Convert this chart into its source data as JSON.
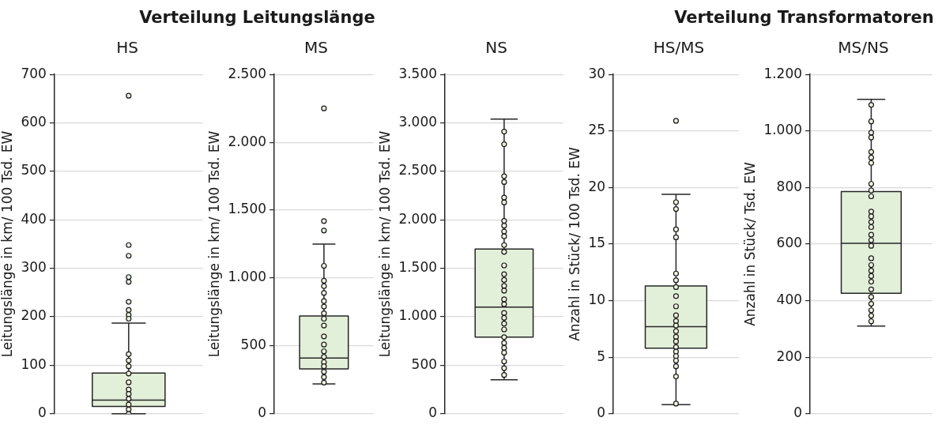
{
  "chart_data": [
    {
      "type": "box",
      "subtitle": "HS",
      "ylabel": "Leitungslänge in km/ 100 Tsd. EW",
      "categories": [
        null
      ],
      "ylim": [
        0,
        700
      ],
      "yticks": [
        0,
        100,
        200,
        300,
        400,
        500,
        600,
        700
      ],
      "grid": "y",
      "tick_labels": "y",
      "marker": "circle",
      "series": [
        {
          "color": "#e2efd9",
          "boxes": [
            {
              "low": 0,
              "q1": 15,
              "median": 28,
              "q3": 84,
              "high": 187,
              "outliers": [
                656,
                348,
                326,
                282,
                272,
                231,
                214,
                204,
                196
              ]
            }
          ]
        },
        {
          "type": "scatter",
          "color": "#eef3dd",
          "x": [
            null,
            null,
            null,
            null,
            null,
            null,
            null,
            null,
            null,
            null,
            null
          ],
          "values": [
            123,
            110,
            98,
            83,
            65,
            50,
            41,
            31,
            19,
            9,
            0
          ]
        }
      ]
    },
    {
      "type": "box",
      "title": "Verteilung Leitungslänge",
      "subtitle": "MS",
      "ylabel": "Leitungslänge in km/ 100 Tsd. EW",
      "categories": [
        null
      ],
      "ylim": [
        0,
        2500
      ],
      "yticks": [
        0,
        500,
        {
          "value": 1000,
          "label": "1.000"
        },
        {
          "value": 1500,
          "label": "1.500"
        },
        {
          "value": 2000,
          "label": "2.000"
        },
        {
          "value": 2500,
          "label": "2.500"
        }
      ],
      "grid": "y",
      "tick_labels": "y",
      "marker": "circle",
      "series": [
        {
          "color": "#e2efd9",
          "boxes": [
            {
              "low": 220,
              "q1": 330,
              "median": 410,
              "q3": 720,
              "high": 1250,
              "outliers": [
                2250,
                1420,
                1350
              ]
            }
          ]
        },
        {
          "type": "scatter",
          "color": "#eef3dd",
          "x": [
            null,
            null,
            null,
            null,
            null,
            null,
            null,
            null,
            null,
            null,
            null,
            null,
            null,
            null,
            null,
            null,
            null,
            null
          ],
          "values": [
            1090,
            980,
            940,
            890,
            830,
            790,
            740,
            700,
            650,
            570,
            510,
            460,
            420,
            380,
            350,
            310,
            270,
            230
          ]
        }
      ]
    },
    {
      "type": "box",
      "subtitle": "NS",
      "ylabel": "Leitungslänge in km/ 100 Tsd. EW",
      "categories": [
        null
      ],
      "ylim": [
        0,
        3500
      ],
      "yticks": [
        0,
        500,
        {
          "value": 1000,
          "label": "1.000"
        },
        {
          "value": 1500,
          "label": "1.500"
        },
        {
          "value": 2000,
          "label": "2.000"
        },
        {
          "value": 2500,
          "label": "2.500"
        },
        {
          "value": 3000,
          "label": "3.000"
        },
        {
          "value": 3500,
          "label": "3.500"
        }
      ],
      "grid": "y",
      "tick_labels": "y",
      "marker": "circle",
      "series": [
        {
          "color": "#e2efd9",
          "boxes": [
            {
              "low": 350,
              "q1": 790,
              "median": 1100,
              "q3": 1700,
              "high": 3040
            }
          ]
        },
        {
          "type": "scatter",
          "color": "#eef3dd",
          "x": [
            null,
            null,
            null,
            null,
            null,
            null,
            null,
            null,
            null,
            null,
            null,
            null,
            null,
            null,
            null,
            null,
            null,
            null,
            null,
            null,
            null,
            null,
            null,
            null,
            null,
            null,
            null,
            null,
            null,
            null
          ],
          "values": [
            2910,
            2780,
            2450,
            2390,
            2230,
            2180,
            1990,
            1940,
            1880,
            1830,
            1740,
            1670,
            1530,
            1440,
            1380,
            1320,
            1270,
            1180,
            1130,
            1040,
            990,
            930,
            870,
            790,
            730,
            680,
            630,
            540,
            470,
            400
          ]
        }
      ]
    },
    {
      "type": "box",
      "subtitle": "HS/MS",
      "ylabel": "Anzahl in Stück/ 100 Tsd. EW",
      "categories": [
        null
      ],
      "ylim": [
        0,
        30
      ],
      "yticks": [
        0,
        5,
        10,
        15,
        20,
        25,
        30
      ],
      "grid": "y",
      "tick_labels": "y",
      "marker": "circle",
      "series": [
        {
          "color": "#e2efd9",
          "boxes": [
            {
              "low": 0.8,
              "q1": 5.8,
              "median": 7.7,
              "q3": 11.3,
              "high": 19.4,
              "outliers": [
                25.9
              ]
            }
          ]
        },
        {
          "type": "scatter",
          "color": "#eef3dd",
          "x": [
            null,
            null,
            null,
            null,
            null,
            null,
            null,
            null,
            null,
            null,
            null,
            null,
            null,
            null,
            null,
            null,
            null,
            null,
            null,
            null,
            null,
            null
          ],
          "values": [
            18.7,
            18.1,
            16.3,
            15.6,
            12.4,
            11.8,
            11.2,
            10.4,
            9.5,
            8.7,
            8.2,
            7.8,
            7.3,
            6.8,
            6.4,
            5.9,
            5.5,
            5.1,
            4.7,
            4.2,
            3.3,
            0.9
          ]
        }
      ]
    },
    {
      "type": "box",
      "title": "Verteilung Transformatoren",
      "subtitle": "MS/NS",
      "ylabel": "Anzahl in Stück/ Tsd. EW",
      "categories": [
        null
      ],
      "ylim": [
        0,
        1200
      ],
      "yticks": [
        0,
        200,
        400,
        600,
        800,
        {
          "value": 1000,
          "label": "1.000"
        },
        {
          "value": 1200,
          "label": "1.200"
        }
      ],
      "grid": "y",
      "tick_labels": "y",
      "marker": "circle",
      "series": [
        {
          "color": "#e2efd9",
          "boxes": [
            {
              "low": 310,
              "q1": 426,
              "median": 603,
              "q3": 786,
              "high": 1112
            }
          ]
        },
        {
          "type": "scatter",
          "color": "#eef3dd",
          "x": [
            null,
            null,
            null,
            null,
            null,
            null,
            null,
            null,
            null,
            null,
            null,
            null,
            null,
            null,
            null,
            null,
            null,
            null,
            null,
            null,
            null,
            null,
            null,
            null,
            null,
            null,
            null,
            null
          ],
          "values": [
            1092,
            1034,
            994,
            977,
            926,
            906,
            887,
            813,
            790,
            769,
            715,
            698,
            678,
            660,
            633,
            614,
            594,
            550,
            526,
            506,
            487,
            467,
            440,
            413,
            389,
            366,
            347,
            327
          ]
        }
      ]
    }
  ]
}
